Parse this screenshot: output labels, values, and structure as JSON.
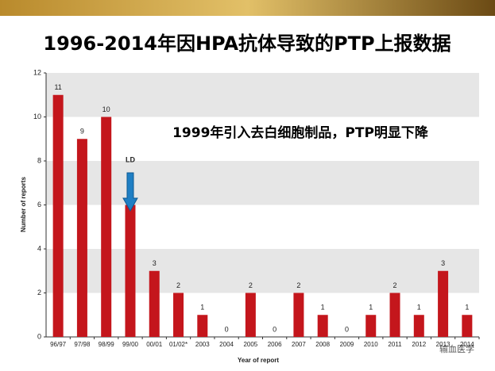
{
  "chart_data": {
    "type": "bar",
    "title": "1996-2014年因HPA抗体导致的PTP上报数据",
    "annotation": "1999年引入去白细胞制品，PTP明显下降",
    "marker_label": "LD",
    "watermark": "输血医学",
    "x_label": "Year of report",
    "y_label": "Number of reports",
    "categories": [
      "96/97",
      "97/98",
      "98/99",
      "99/00",
      "00/01",
      "01/02*",
      "2003",
      "2004",
      "2005",
      "2006",
      "2007",
      "2008",
      "2009",
      "2010",
      "2011",
      "2012",
      "2013",
      "2014"
    ],
    "values": [
      11,
      9,
      10,
      6,
      3,
      2,
      1,
      0,
      2,
      0,
      2,
      1,
      0,
      1,
      2,
      1,
      3,
      1
    ],
    "color": "#c4161c",
    "ylim": [
      0,
      12
    ],
    "yticks": [
      0,
      2,
      4,
      6,
      8,
      10,
      12
    ],
    "grid": true
  }
}
